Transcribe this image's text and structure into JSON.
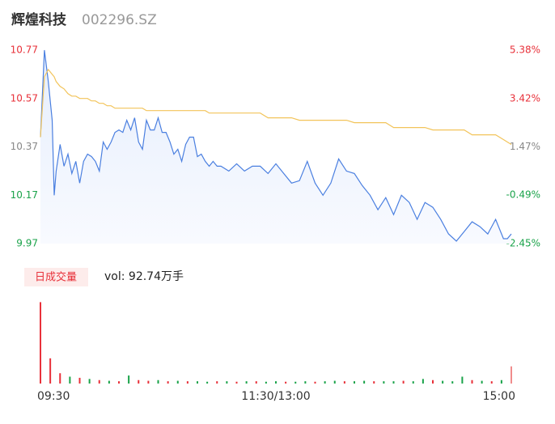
{
  "header": {
    "name": "辉煌科技",
    "code": "002296.SZ"
  },
  "chart_data": [
    {
      "type": "line",
      "x": [
        0,
        2,
        4,
        6,
        7,
        8,
        10,
        12,
        14,
        16,
        18,
        20,
        22,
        24,
        26,
        28,
        30,
        32,
        34,
        36,
        38,
        40,
        42,
        44,
        46,
        48,
        50,
        52,
        54,
        56,
        58,
        60,
        62,
        64,
        66,
        68,
        70,
        72,
        74,
        76,
        78,
        80,
        82,
        84,
        86,
        88,
        90,
        92,
        96,
        100,
        104,
        108,
        112,
        116,
        120,
        124,
        128,
        132,
        136,
        140,
        144,
        148,
        152,
        156,
        160,
        164,
        168,
        172,
        176,
        180,
        184,
        188,
        192,
        196,
        200,
        204,
        208,
        212,
        216,
        220,
        224,
        228,
        232,
        236,
        238,
        240
      ],
      "series": [
        {
          "name": "price",
          "color": "#4a7fe0",
          "values": [
            10.41,
            10.77,
            10.64,
            10.48,
            10.17,
            10.27,
            10.38,
            10.29,
            10.34,
            10.26,
            10.31,
            10.22,
            10.31,
            10.34,
            10.33,
            10.31,
            10.27,
            10.39,
            10.36,
            10.39,
            10.43,
            10.44,
            10.43,
            10.48,
            10.44,
            10.49,
            10.39,
            10.36,
            10.48,
            10.44,
            10.44,
            10.49,
            10.43,
            10.43,
            10.39,
            10.34,
            10.36,
            10.31,
            10.38,
            10.41,
            10.41,
            10.33,
            10.34,
            10.31,
            10.29,
            10.31,
            10.29,
            10.29,
            10.27,
            10.3,
            10.27,
            10.29,
            10.29,
            10.26,
            10.3,
            10.26,
            10.22,
            10.23,
            10.31,
            10.22,
            10.17,
            10.22,
            10.32,
            10.27,
            10.26,
            10.21,
            10.17,
            10.11,
            10.16,
            10.09,
            10.17,
            10.14,
            10.07,
            10.14,
            10.12,
            10.07,
            10.01,
            9.98,
            10.02,
            10.06,
            10.04,
            10.01,
            10.07,
            9.99,
            9.99,
            10.01
          ]
        },
        {
          "name": "average",
          "color": "#f2c45a",
          "values": [
            10.41,
            10.66,
            10.69,
            10.67,
            10.66,
            10.64,
            10.62,
            10.61,
            10.59,
            10.58,
            10.58,
            10.57,
            10.57,
            10.57,
            10.56,
            10.56,
            10.55,
            10.55,
            10.54,
            10.54,
            10.53,
            10.53,
            10.53,
            10.53,
            10.53,
            10.53,
            10.53,
            10.53,
            10.52,
            10.52,
            10.52,
            10.52,
            10.52,
            10.52,
            10.52,
            10.52,
            10.52,
            10.52,
            10.52,
            10.52,
            10.52,
            10.52,
            10.52,
            10.52,
            10.51,
            10.51,
            10.51,
            10.51,
            10.51,
            10.51,
            10.51,
            10.51,
            10.51,
            10.49,
            10.49,
            10.49,
            10.49,
            10.48,
            10.48,
            10.48,
            10.48,
            10.48,
            10.48,
            10.48,
            10.47,
            10.47,
            10.47,
            10.47,
            10.47,
            10.45,
            10.45,
            10.45,
            10.45,
            10.45,
            10.44,
            10.44,
            10.44,
            10.44,
            10.44,
            10.42,
            10.42,
            10.42,
            10.42,
            10.4,
            10.39,
            10.38
          ]
        }
      ],
      "xlim": [
        0,
        240
      ],
      "ylim": [
        9.97,
        10.77
      ],
      "yticks": [
        10.77,
        10.57,
        10.37,
        10.17,
        9.97
      ],
      "y2lim": [
        -2.45,
        5.38
      ],
      "y2ticks": [
        {
          "value": 5.38,
          "label": "5.38%"
        },
        {
          "value": 3.42,
          "label": "3.42%"
        },
        {
          "value": 1.47,
          "label": "1.47%"
        },
        {
          "value": -0.49,
          "label": "-0.49%"
        },
        {
          "value": -2.45,
          "label": "-2.45%"
        }
      ],
      "tick_colors": [
        "#e8313a",
        "#e8313a",
        "#888888",
        "#1aa34a",
        "#1aa34a"
      ]
    },
    {
      "type": "bar",
      "title": "日成交量",
      "annotation": "vol: 92.74万手",
      "x": [
        0,
        5,
        10,
        15,
        20,
        25,
        30,
        35,
        40,
        45,
        50,
        55,
        60,
        65,
        70,
        75,
        80,
        85,
        90,
        95,
        100,
        105,
        110,
        115,
        120,
        125,
        130,
        135,
        140,
        145,
        150,
        155,
        160,
        165,
        170,
        175,
        180,
        185,
        190,
        195,
        200,
        205,
        210,
        215,
        220,
        225,
        230,
        235,
        240
      ],
      "values": [
        3.55,
        1.1,
        0.45,
        0.3,
        0.25,
        0.2,
        0.15,
        0.12,
        0.1,
        0.35,
        0.15,
        0.12,
        0.15,
        0.1,
        0.12,
        0.1,
        0.1,
        0.08,
        0.1,
        0.1,
        0.08,
        0.1,
        0.1,
        0.08,
        0.1,
        0.08,
        0.08,
        0.1,
        0.08,
        0.1,
        0.12,
        0.1,
        0.1,
        0.12,
        0.1,
        0.1,
        0.1,
        0.12,
        0.1,
        0.2,
        0.15,
        0.12,
        0.1,
        0.3,
        0.15,
        0.12,
        0.1,
        0.15,
        0.75
      ],
      "colors": [
        "#e8313a",
        "#e8313a",
        "#e8313a",
        "#1aa34a",
        "#e8313a",
        "#1aa34a",
        "#e8313a",
        "#1aa34a",
        "#e8313a",
        "#1aa34a",
        "#e8313a",
        "#e8313a",
        "#1aa34a",
        "#e8313a",
        "#1aa34a",
        "#e8313a",
        "#1aa34a",
        "#1aa34a",
        "#e8313a",
        "#1aa34a",
        "#e8313a",
        "#1aa34a",
        "#e8313a",
        "#1aa34a",
        "#1aa34a",
        "#e8313a",
        "#1aa34a",
        "#1aa34a",
        "#e8313a",
        "#1aa34a",
        "#1aa34a",
        "#e8313a",
        "#1aa34a",
        "#1aa34a",
        "#e8313a",
        "#1aa34a",
        "#1aa34a",
        "#e8313a",
        "#1aa34a",
        "#1aa34a",
        "#e8313a",
        "#1aa34a",
        "#1aa34a",
        "#1aa34a",
        "#e8313a",
        "#1aa34a",
        "#e8313a",
        "#1aa34a",
        "#f08c8c"
      ],
      "xlim": [
        0,
        240
      ],
      "ylim": [
        0,
        3.6
      ],
      "xticks": [
        {
          "value": 0,
          "label": "09:30"
        },
        {
          "value": 120,
          "label": "11:30/13:00"
        },
        {
          "value": 240,
          "label": "15:00"
        }
      ]
    }
  ]
}
